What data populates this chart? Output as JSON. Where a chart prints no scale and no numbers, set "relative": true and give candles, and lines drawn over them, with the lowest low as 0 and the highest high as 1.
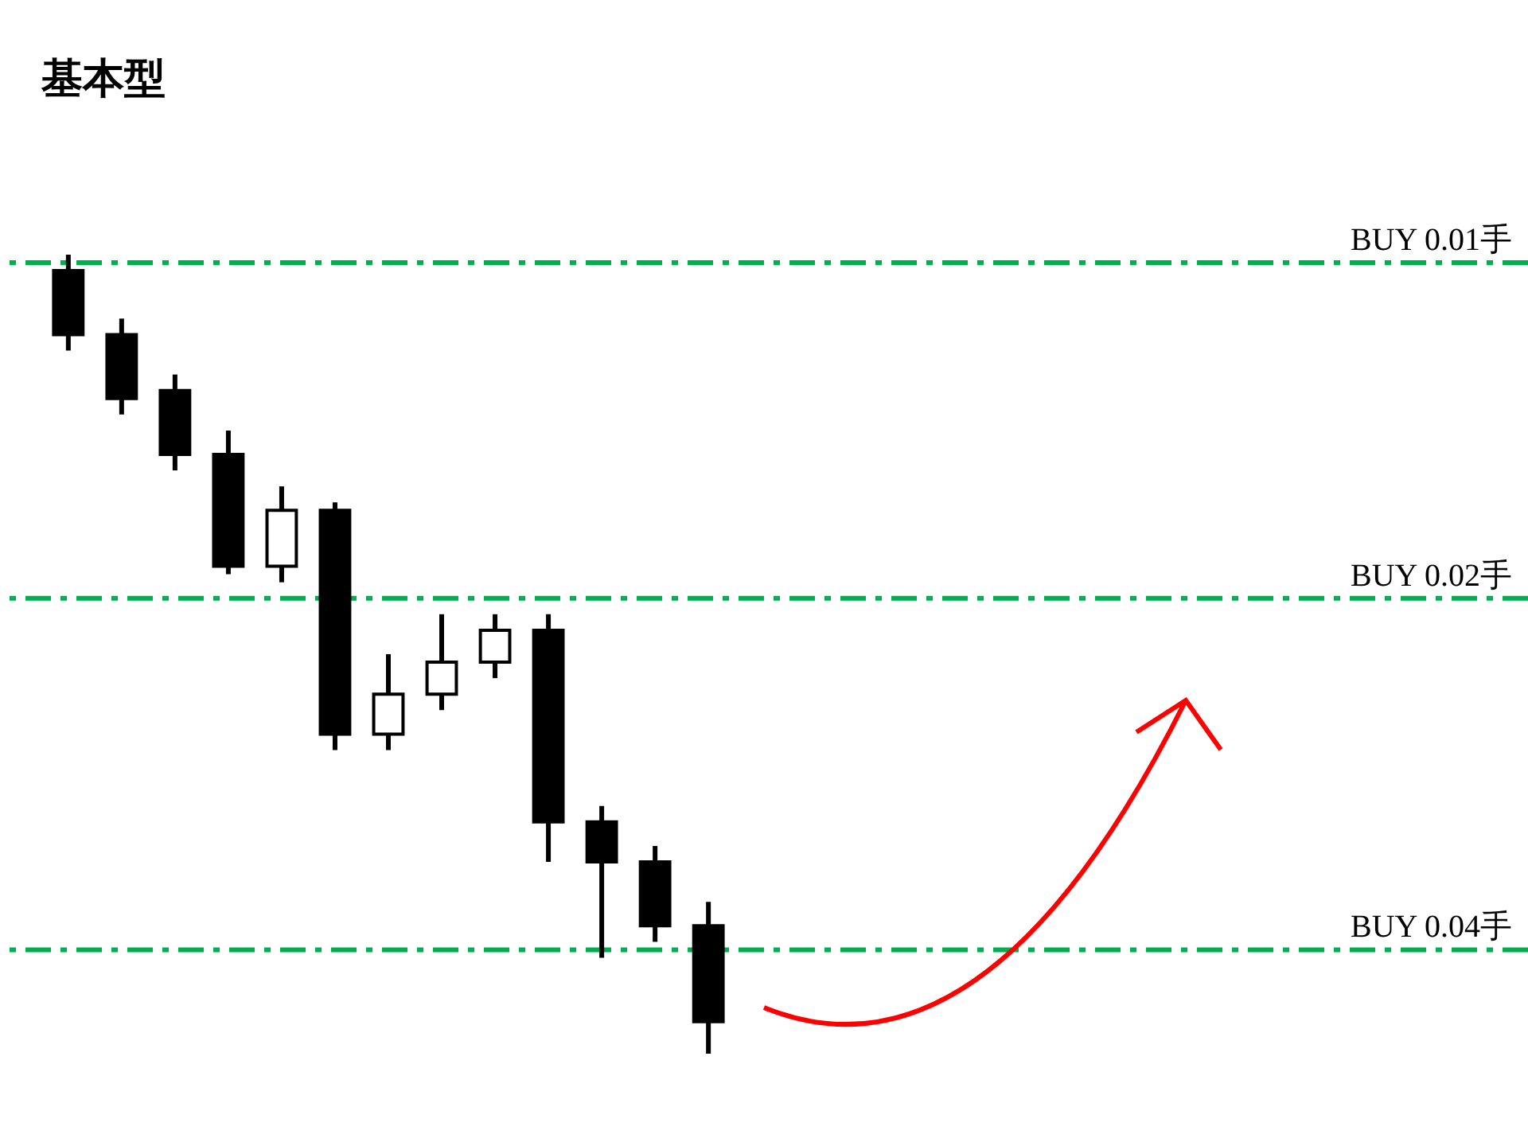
{
  "chart_data": {
    "type": "candlestick",
    "title": "基本型",
    "relative": true,
    "categories": [
      null,
      null,
      null,
      null,
      null,
      null,
      null,
      null,
      null,
      null,
      null,
      null,
      null
    ],
    "ohlc": [
      [
        0.98,
        1.0,
        0.88,
        0.9
      ],
      [
        0.9,
        0.92,
        0.8,
        0.82
      ],
      [
        0.83,
        0.85,
        0.73,
        0.75
      ],
      [
        0.75,
        0.78,
        0.6,
        0.61
      ],
      [
        0.61,
        0.71,
        0.59,
        0.68
      ],
      [
        0.68,
        0.69,
        0.38,
        0.4
      ],
      [
        0.4,
        0.5,
        0.38,
        0.45
      ],
      [
        0.45,
        0.55,
        0.43,
        0.49
      ],
      [
        0.49,
        0.55,
        0.47,
        0.53
      ],
      [
        0.53,
        0.55,
        0.24,
        0.29
      ],
      [
        0.29,
        0.31,
        0.12,
        0.24
      ],
      [
        0.24,
        0.26,
        0.14,
        0.16
      ],
      [
        0.16,
        0.19,
        0.0,
        0.04
      ]
    ],
    "ref_lines": [
      {
        "axis": "y",
        "value": 0.99,
        "label": "BUY 0.01手",
        "color": "#00b050",
        "line_style": "dashed"
      },
      {
        "axis": "y",
        "value": 0.57,
        "label": "BUY 0.02手",
        "color": "#00b050",
        "line_style": "dashed"
      },
      {
        "axis": "y",
        "value": 0.13,
        "label": "BUY 0.04手",
        "color": "#00b050",
        "line_style": "dashed"
      }
    ]
  }
}
